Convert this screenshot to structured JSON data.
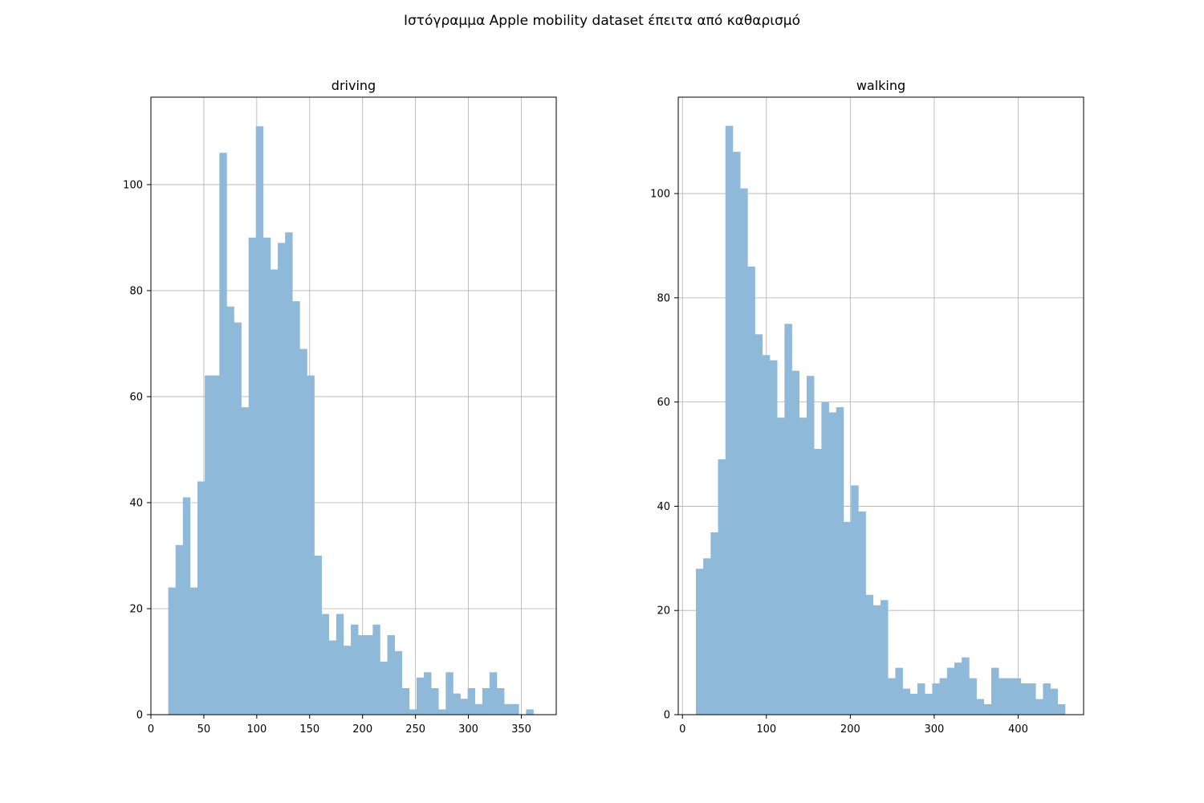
{
  "figure": {
    "title": "Ιστόγραμμα Apple mobility dataset έπειτα από καθαρισμό"
  },
  "chart_data": [
    {
      "type": "bar",
      "title": "driving",
      "xlabel": "",
      "ylabel": "",
      "grid": true,
      "color": "#8fb9d9",
      "xlim": [
        0,
        383
      ],
      "ylim": [
        0,
        116.5
      ],
      "xticks": [
        0,
        50,
        100,
        150,
        200,
        250,
        300,
        350
      ],
      "yticks": [
        0,
        20,
        40,
        60,
        80,
        100
      ],
      "bin_start": 16.4,
      "bin_width": 6.9,
      "values": [
        24,
        32,
        41,
        24,
        44,
        64,
        64,
        106,
        77,
        74,
        58,
        90,
        111,
        90,
        84,
        89,
        91,
        78,
        69,
        64,
        30,
        19,
        14,
        19,
        13,
        17,
        15,
        15,
        17,
        10,
        15,
        12,
        5,
        1,
        7,
        8,
        5,
        1,
        8,
        4,
        3,
        5,
        2,
        5,
        8,
        5,
        2,
        2,
        0,
        1
      ]
    },
    {
      "type": "bar",
      "title": "walking",
      "xlabel": "",
      "ylabel": "",
      "grid": true,
      "color": "#8fb9d9",
      "xlim": [
        -5,
        478
      ],
      "ylim": [
        0,
        118.5
      ],
      "xticks": [
        0,
        100,
        200,
        300,
        400
      ],
      "yticks": [
        0,
        20,
        40,
        60,
        80,
        100
      ],
      "bin_start": 16,
      "bin_width": 8.8,
      "values": [
        28,
        30,
        35,
        49,
        113,
        108,
        101,
        86,
        73,
        69,
        68,
        57,
        75,
        66,
        57,
        65,
        51,
        60,
        58,
        59,
        37,
        44,
        39,
        23,
        21,
        22,
        7,
        9,
        5,
        4,
        6,
        4,
        6,
        7,
        9,
        10,
        11,
        7,
        3,
        2,
        9,
        7,
        7,
        7,
        6,
        6,
        3,
        6,
        5,
        2
      ]
    }
  ]
}
